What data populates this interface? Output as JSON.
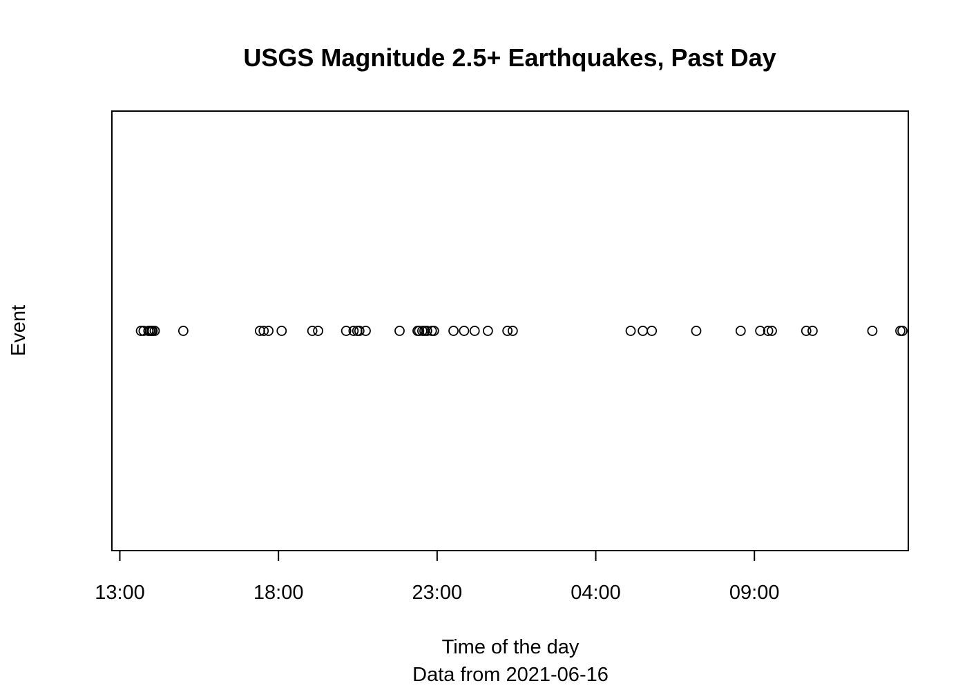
{
  "chart_data": {
    "type": "scatter",
    "title": "USGS Magnitude 2.5+ Earthquakes, Past Day",
    "xlabel": "Time of the day",
    "subtitle": "Data from  2021-06-16",
    "ylabel": "Event",
    "x_tick_labels": [
      "13:00",
      "18:00",
      "23:00",
      "04:00",
      "09:00"
    ],
    "x_ticks_hours": [
      13,
      18,
      23,
      28,
      33
    ],
    "xlim_hours": [
      12.75,
      37.85
    ],
    "y_value": 1,
    "grid": false,
    "legend": "none",
    "marker": "open-circle",
    "colors": {
      "marker": "#000000",
      "axis": "#000000",
      "background": "#ffffff"
    },
    "event_times": [
      "13:40",
      "13:45",
      "13:54",
      "13:57",
      "14:00",
      "14:02",
      "14:06",
      "15:00",
      "17:25",
      "17:32",
      "17:41",
      "18:06",
      "19:04",
      "19:15",
      "20:08",
      "20:22",
      "20:29",
      "20:33",
      "20:45",
      "21:49",
      "22:23",
      "22:26",
      "22:32",
      "22:36",
      "22:41",
      "22:50",
      "22:54",
      "23:31",
      "23:51",
      "24:11",
      "24:36",
      "25:13",
      "25:23",
      "29:06",
      "29:29",
      "29:46",
      "31:10",
      "32:34",
      "33:11",
      "33:26",
      "33:33",
      "34:38",
      "34:50",
      "36:43",
      "37:36",
      "37:40"
    ]
  }
}
